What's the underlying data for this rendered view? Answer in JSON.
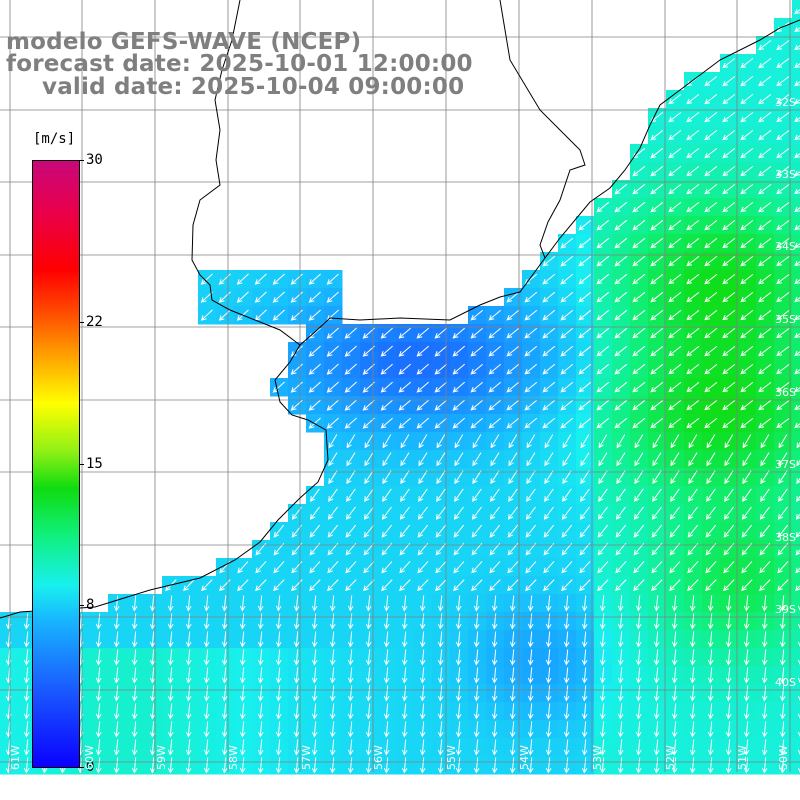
{
  "title": {
    "model": "modelo GEFS-WAVE (NCEP)",
    "forecast": "forecast date: 2025-10-01 12:00:00",
    "valid": "valid date: 2025-10-04 09:00:00"
  },
  "colorbar": {
    "unit": "[m/s]",
    "min": 0,
    "max": 30,
    "ticks": [
      "30",
      "22",
      "15",
      "8",
      "0"
    ],
    "tick_values": [
      30,
      22,
      15,
      8,
      0
    ],
    "colors": {
      "low": "#0a00ff",
      "cyan": "#18f0ee",
      "green": "#0fdc0f",
      "yellow": "#ffff00",
      "red": "#ff0000",
      "high": "#c8087a"
    }
  },
  "axes": {
    "lon_labels": [
      "61W",
      "60W",
      "59W",
      "58W",
      "57W",
      "56W",
      "55W",
      "54W",
      "53W",
      "52W",
      "51W",
      "50W"
    ],
    "lat_labels": [
      "32S",
      "33S",
      "34S",
      "35S",
      "36S",
      "37S",
      "38S",
      "39S",
      "40S"
    ]
  },
  "field": {
    "variable": "wind speed with direction arrows",
    "arrow_color": "#ffffff",
    "land_color": "#ffffff",
    "coast_color": "#000000",
    "grid_color": "#808080"
  }
}
